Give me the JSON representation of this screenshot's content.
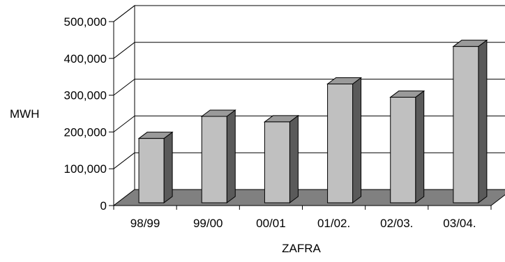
{
  "chart_data": {
    "type": "bar",
    "style": "3d-column",
    "categories": [
      "98/99",
      "99/00",
      "00/01",
      "01/02.",
      "02/03.",
      "03/04."
    ],
    "values": [
      190000,
      250000,
      235000,
      338000,
      302000,
      440000
    ],
    "title": "",
    "xlabel": "ZAFRA",
    "ylabel": "MWH",
    "ylim": [
      0,
      500000
    ],
    "yticks": [
      "0",
      "100,000",
      "200,000",
      "300,000",
      "400,000",
      "500,000"
    ],
    "grid": true,
    "legend": "none",
    "colors": {
      "bar_front": "#c0c0c0",
      "bar_side": "#5a5a5a",
      "bar_top": "#9a9a9a",
      "floor": "#808080",
      "grid": "#000000"
    }
  }
}
